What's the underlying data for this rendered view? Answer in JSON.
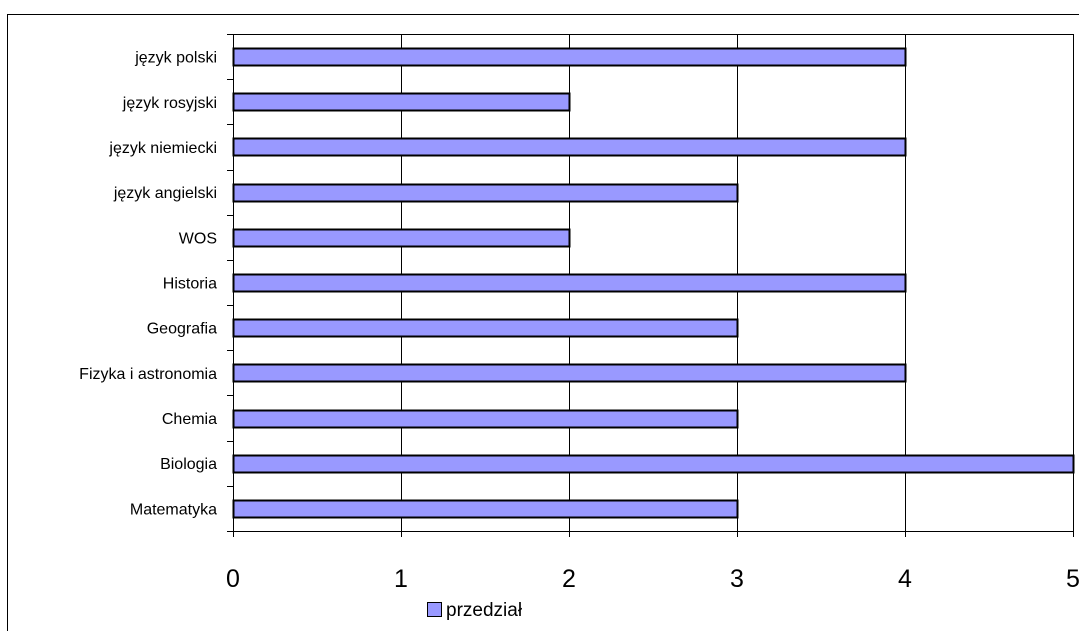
{
  "chart_data": {
    "type": "bar",
    "orientation": "horizontal",
    "categories": [
      "język polski",
      "język rosyjski",
      "język niemiecki",
      "język angielski",
      "WOS",
      "Historia",
      "Geografia",
      "Fizyka i astronomia",
      "Chemia",
      "Biologia",
      "Matematyka"
    ],
    "series": [
      {
        "name": "przedział",
        "color": "#9999ff",
        "values": [
          4,
          2,
          4,
          3,
          2,
          4,
          3,
          4,
          3,
          5,
          3
        ]
      }
    ],
    "xlim": [
      0,
      5
    ],
    "xticks": [
      "0",
      "1",
      "2",
      "3",
      "4",
      "5"
    ],
    "grid": "vertical",
    "legend": "bottom"
  },
  "colors": {
    "bar_fill": "#9999ff",
    "bar_stroke": "#000000",
    "gridline": "#000000",
    "frame": "#000000"
  }
}
